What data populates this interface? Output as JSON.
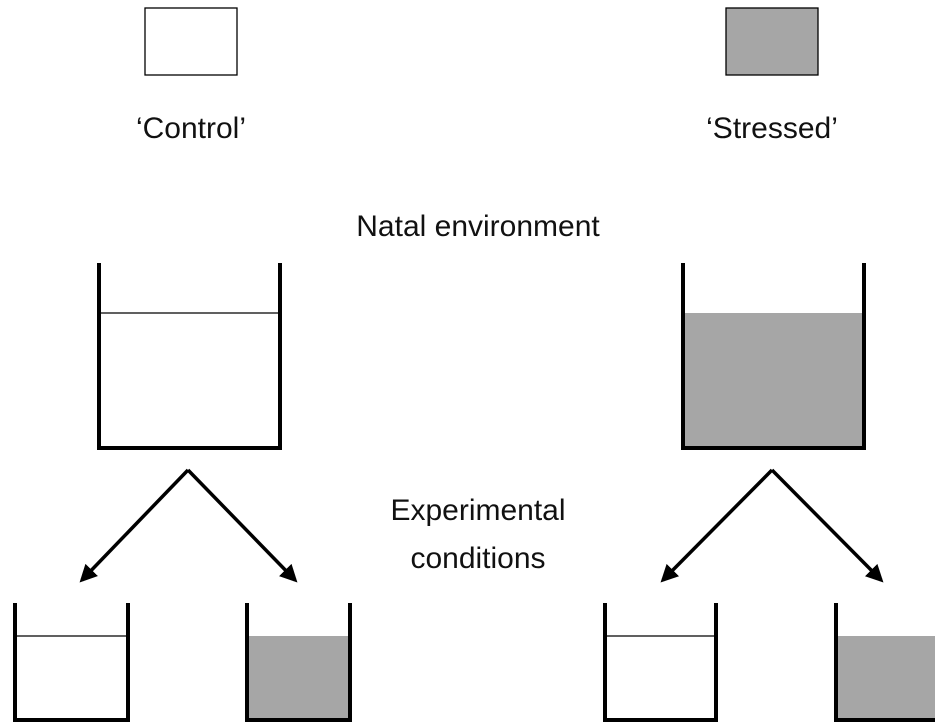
{
  "legend": [
    {
      "label": "‘Control’"
    },
    {
      "label": "‘Stressed’"
    }
  ],
  "natal_label": "Natal environment",
  "experimental_label": [
    "Experimental",
    "conditions"
  ]
}
